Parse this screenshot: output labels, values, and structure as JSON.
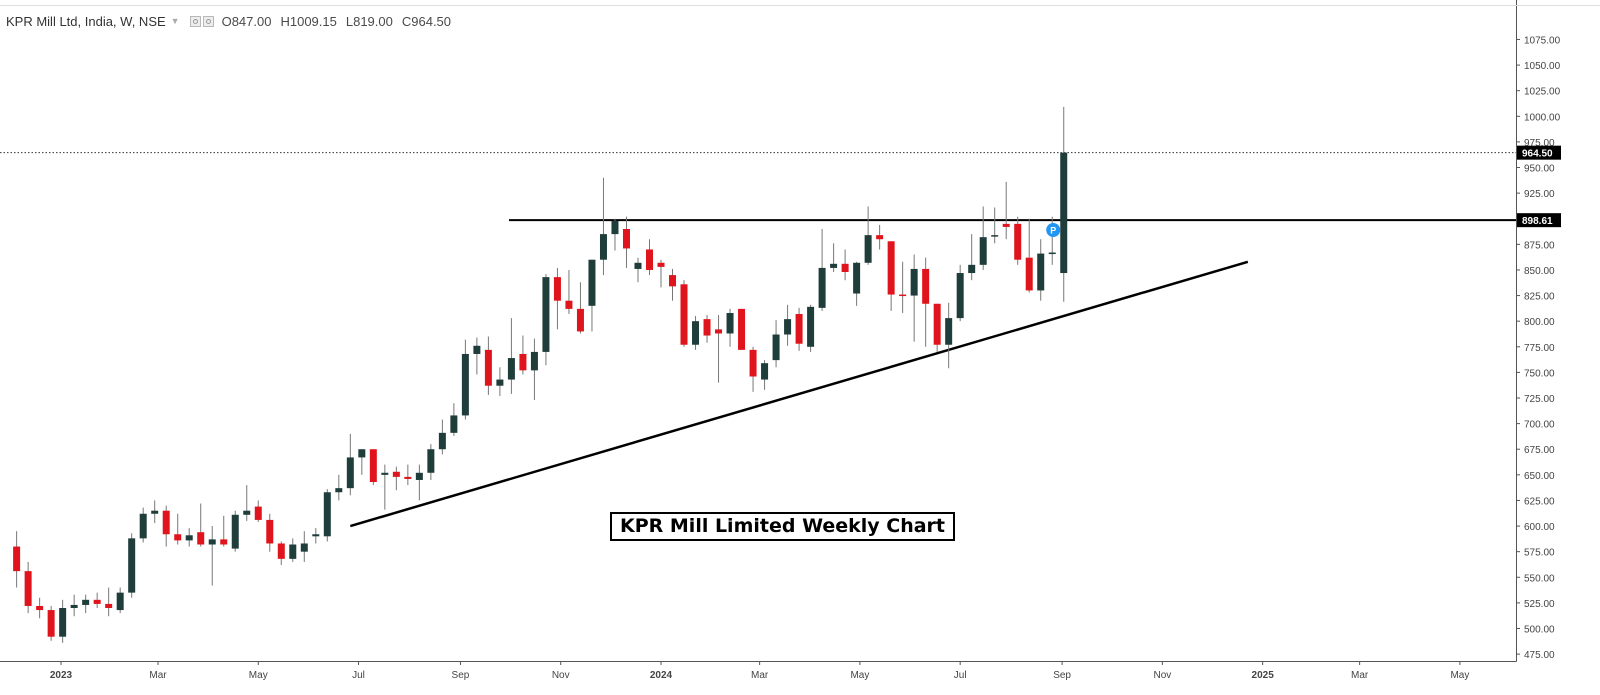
{
  "header": {
    "symbol": "KPR Mill Ltd, India, W, NSE",
    "open_label": "O847.00",
    "high_label": "H1009.15",
    "low_label": "L819.00",
    "close_label": "C964.50",
    "caret_icon": "chevron-down-icon",
    "settings_icons": [
      "eye-icon",
      "settings-icon"
    ]
  },
  "caption": "KPR Mill Limited Weekly Chart",
  "chart_data": {
    "type": "candlestick",
    "title": "KPR Mill Limited Weekly Chart",
    "timeframe": "W",
    "exchange": "NSE",
    "ylim": [
      455,
      1090
    ],
    "y_ticks": [
      475,
      500,
      525,
      550,
      575,
      600,
      625,
      650,
      675,
      700,
      725,
      750,
      775,
      800,
      825,
      850,
      875,
      900,
      925,
      950,
      975,
      1000,
      1025,
      1050,
      1075
    ],
    "y_tick_labels": [
      "475.00",
      "500.00",
      "525.00",
      "550.00",
      "575.00",
      "600.00",
      "625.00",
      "650.00",
      "675.00",
      "700.00",
      "725.00",
      "750.00",
      "775.00",
      "800.00",
      "825.00",
      "850.00",
      "875.00",
      "900.00",
      "925.00",
      "950.00",
      "975.00",
      "1000.00",
      "1025.00",
      "1050.00",
      "1075.00"
    ],
    "x_ticks": [
      {
        "label": "2023",
        "date": "2023-01-01"
      },
      {
        "label": "Mar",
        "date": "2023-03-01"
      },
      {
        "label": "May",
        "date": "2023-05-01"
      },
      {
        "label": "Jul",
        "date": "2023-07-01"
      },
      {
        "label": "Sep",
        "date": "2023-09-01"
      },
      {
        "label": "Nov",
        "date": "2023-11-01"
      },
      {
        "label": "2024",
        "date": "2024-01-01"
      },
      {
        "label": "Mar",
        "date": "2024-03-01"
      },
      {
        "label": "May",
        "date": "2024-05-01"
      },
      {
        "label": "Jul",
        "date": "2024-07-01"
      },
      {
        "label": "Sep",
        "date": "2024-09-01"
      },
      {
        "label": "Nov",
        "date": "2024-11-01"
      },
      {
        "label": "2025",
        "date": "2025-01-01"
      },
      {
        "label": "Mar",
        "date": "2025-03-01"
      },
      {
        "label": "May",
        "date": "2025-05-01"
      }
    ],
    "candles": [
      {
        "date": "2022-12-05",
        "o": 580,
        "h": 595,
        "l": 540,
        "c": 556
      },
      {
        "date": "2022-12-12",
        "o": 556,
        "h": 565,
        "l": 515,
        "c": 522
      },
      {
        "date": "2022-12-19",
        "o": 522,
        "h": 530,
        "l": 510,
        "c": 518
      },
      {
        "date": "2022-12-26",
        "o": 518,
        "h": 522,
        "l": 488,
        "c": 492
      },
      {
        "date": "2023-01-02",
        "o": 492,
        "h": 528,
        "l": 486,
        "c": 520
      },
      {
        "date": "2023-01-09",
        "o": 520,
        "h": 533,
        "l": 512,
        "c": 523
      },
      {
        "date": "2023-01-16",
        "o": 523,
        "h": 533,
        "l": 515,
        "c": 528
      },
      {
        "date": "2023-01-23",
        "o": 528,
        "h": 535,
        "l": 520,
        "c": 524
      },
      {
        "date": "2023-01-30",
        "o": 524,
        "h": 540,
        "l": 512,
        "c": 520
      },
      {
        "date": "2023-02-06",
        "o": 518,
        "h": 540,
        "l": 515,
        "c": 535
      },
      {
        "date": "2023-02-13",
        "o": 535,
        "h": 593,
        "l": 530,
        "c": 588
      },
      {
        "date": "2023-02-20",
        "o": 588,
        "h": 618,
        "l": 584,
        "c": 612
      },
      {
        "date": "2023-02-27",
        "o": 612,
        "h": 625,
        "l": 603,
        "c": 615
      },
      {
        "date": "2023-03-06",
        "o": 615,
        "h": 620,
        "l": 580,
        "c": 592
      },
      {
        "date": "2023-03-13",
        "o": 592,
        "h": 612,
        "l": 582,
        "c": 586
      },
      {
        "date": "2023-03-20",
        "o": 586,
        "h": 598,
        "l": 580,
        "c": 591
      },
      {
        "date": "2023-03-27",
        "o": 594,
        "h": 622,
        "l": 580,
        "c": 582
      },
      {
        "date": "2023-04-03",
        "o": 582,
        "h": 600,
        "l": 542,
        "c": 587
      },
      {
        "date": "2023-04-10",
        "o": 587,
        "h": 610,
        "l": 580,
        "c": 582
      },
      {
        "date": "2023-04-17",
        "o": 578,
        "h": 615,
        "l": 575,
        "c": 611
      },
      {
        "date": "2023-04-24",
        "o": 611,
        "h": 640,
        "l": 605,
        "c": 615
      },
      {
        "date": "2023-05-01",
        "o": 619,
        "h": 625,
        "l": 604,
        "c": 606
      },
      {
        "date": "2023-05-08",
        "o": 606,
        "h": 612,
        "l": 575,
        "c": 583
      },
      {
        "date": "2023-05-15",
        "o": 583,
        "h": 585,
        "l": 562,
        "c": 568
      },
      {
        "date": "2023-05-22",
        "o": 568,
        "h": 588,
        "l": 565,
        "c": 582
      },
      {
        "date": "2023-05-29",
        "o": 575,
        "h": 595,
        "l": 565,
        "c": 583
      },
      {
        "date": "2023-06-05",
        "o": 590,
        "h": 598,
        "l": 583,
        "c": 592
      },
      {
        "date": "2023-06-12",
        "o": 590,
        "h": 636,
        "l": 585,
        "c": 633
      },
      {
        "date": "2023-06-19",
        "o": 633,
        "h": 650,
        "l": 625,
        "c": 637
      },
      {
        "date": "2023-06-26",
        "o": 637,
        "h": 690,
        "l": 630,
        "c": 667
      },
      {
        "date": "2023-07-03",
        "o": 667,
        "h": 675,
        "l": 650,
        "c": 675
      },
      {
        "date": "2023-07-10",
        "o": 675,
        "h": 675,
        "l": 640,
        "c": 643
      },
      {
        "date": "2023-07-17",
        "o": 650,
        "h": 660,
        "l": 616,
        "c": 652
      },
      {
        "date": "2023-07-24",
        "o": 653,
        "h": 658,
        "l": 635,
        "c": 648
      },
      {
        "date": "2023-07-31",
        "o": 648,
        "h": 660,
        "l": 640,
        "c": 646
      },
      {
        "date": "2023-08-07",
        "o": 645,
        "h": 660,
        "l": 625,
        "c": 652
      },
      {
        "date": "2023-08-14",
        "o": 652,
        "h": 680,
        "l": 645,
        "c": 675
      },
      {
        "date": "2023-08-21",
        "o": 675,
        "h": 704,
        "l": 670,
        "c": 691
      },
      {
        "date": "2023-08-28",
        "o": 691,
        "h": 720,
        "l": 688,
        "c": 708
      },
      {
        "date": "2023-09-04",
        "o": 708,
        "h": 782,
        "l": 704,
        "c": 768
      },
      {
        "date": "2023-09-11",
        "o": 768,
        "h": 784,
        "l": 748,
        "c": 776
      },
      {
        "date": "2023-09-18",
        "o": 772,
        "h": 785,
        "l": 728,
        "c": 737
      },
      {
        "date": "2023-09-25",
        "o": 737,
        "h": 755,
        "l": 727,
        "c": 743
      },
      {
        "date": "2023-10-02",
        "o": 743,
        "h": 803,
        "l": 729,
        "c": 764
      },
      {
        "date": "2023-10-09",
        "o": 768,
        "h": 786,
        "l": 748,
        "c": 752
      },
      {
        "date": "2023-10-16",
        "o": 752,
        "h": 783,
        "l": 723,
        "c": 770
      },
      {
        "date": "2023-10-23",
        "o": 770,
        "h": 846,
        "l": 757,
        "c": 843
      },
      {
        "date": "2023-10-30",
        "o": 843,
        "h": 852,
        "l": 792,
        "c": 820
      },
      {
        "date": "2023-11-06",
        "o": 820,
        "h": 850,
        "l": 807,
        "c": 812
      },
      {
        "date": "2023-11-13",
        "o": 812,
        "h": 838,
        "l": 788,
        "c": 790
      },
      {
        "date": "2023-11-20",
        "o": 815,
        "h": 860,
        "l": 790,
        "c": 860
      },
      {
        "date": "2023-11-27",
        "o": 860,
        "h": 940,
        "l": 845,
        "c": 885
      },
      {
        "date": "2023-12-04",
        "o": 885,
        "h": 900,
        "l": 869,
        "c": 898
      },
      {
        "date": "2023-12-11",
        "o": 890,
        "h": 902,
        "l": 852,
        "c": 871
      },
      {
        "date": "2023-12-18",
        "o": 851,
        "h": 862,
        "l": 838,
        "c": 857
      },
      {
        "date": "2023-12-25",
        "o": 870,
        "h": 880,
        "l": 845,
        "c": 850
      },
      {
        "date": "2024-01-01",
        "o": 857,
        "h": 860,
        "l": 833,
        "c": 853
      },
      {
        "date": "2024-01-08",
        "o": 845,
        "h": 851,
        "l": 820,
        "c": 834
      },
      {
        "date": "2024-01-15",
        "o": 836,
        "h": 840,
        "l": 775,
        "c": 777
      },
      {
        "date": "2024-01-22",
        "o": 777,
        "h": 805,
        "l": 772,
        "c": 800
      },
      {
        "date": "2024-01-29",
        "o": 802,
        "h": 806,
        "l": 779,
        "c": 786
      },
      {
        "date": "2024-02-05",
        "o": 792,
        "h": 806,
        "l": 740,
        "c": 788
      },
      {
        "date": "2024-02-12",
        "o": 788,
        "h": 812,
        "l": 775,
        "c": 808
      },
      {
        "date": "2024-02-19",
        "o": 812,
        "h": 812,
        "l": 775,
        "c": 772
      },
      {
        "date": "2024-02-26",
        "o": 772,
        "h": 775,
        "l": 731,
        "c": 746
      },
      {
        "date": "2024-03-04",
        "o": 743,
        "h": 762,
        "l": 733,
        "c": 759
      },
      {
        "date": "2024-03-11",
        "o": 762,
        "h": 801,
        "l": 755,
        "c": 787
      },
      {
        "date": "2024-03-18",
        "o": 787,
        "h": 816,
        "l": 776,
        "c": 802
      },
      {
        "date": "2024-03-25",
        "o": 807,
        "h": 813,
        "l": 771,
        "c": 778
      },
      {
        "date": "2024-04-01",
        "o": 775,
        "h": 816,
        "l": 770,
        "c": 814
      },
      {
        "date": "2024-04-08",
        "o": 813,
        "h": 890,
        "l": 810,
        "c": 852
      },
      {
        "date": "2024-04-15",
        "o": 852,
        "h": 876,
        "l": 848,
        "c": 856
      },
      {
        "date": "2024-04-22",
        "o": 856,
        "h": 870,
        "l": 840,
        "c": 848
      },
      {
        "date": "2024-04-29",
        "o": 827,
        "h": 858,
        "l": 815,
        "c": 857
      },
      {
        "date": "2024-05-06",
        "o": 857,
        "h": 912,
        "l": 855,
        "c": 884
      },
      {
        "date": "2024-05-13",
        "o": 884,
        "h": 894,
        "l": 870,
        "c": 880
      },
      {
        "date": "2024-05-20",
        "o": 878,
        "h": 878,
        "l": 810,
        "c": 826
      },
      {
        "date": "2024-05-27",
        "o": 826,
        "h": 858,
        "l": 808,
        "c": 825
      },
      {
        "date": "2024-06-03",
        "o": 825,
        "h": 865,
        "l": 780,
        "c": 851
      },
      {
        "date": "2024-06-10",
        "o": 851,
        "h": 862,
        "l": 775,
        "c": 817
      },
      {
        "date": "2024-06-17",
        "o": 817,
        "h": 817,
        "l": 770,
        "c": 777
      },
      {
        "date": "2024-06-24",
        "o": 777,
        "h": 818,
        "l": 754,
        "c": 803
      },
      {
        "date": "2024-07-01",
        "o": 803,
        "h": 855,
        "l": 800,
        "c": 847
      },
      {
        "date": "2024-07-08",
        "o": 847,
        "h": 885,
        "l": 840,
        "c": 855
      },
      {
        "date": "2024-07-15",
        "o": 855,
        "h": 912,
        "l": 850,
        "c": 882
      },
      {
        "date": "2024-07-22",
        "o": 883,
        "h": 911,
        "l": 876,
        "c": 884
      },
      {
        "date": "2024-07-29",
        "o": 895,
        "h": 936,
        "l": 880,
        "c": 892
      },
      {
        "date": "2024-08-05",
        "o": 895,
        "h": 902,
        "l": 855,
        "c": 860
      },
      {
        "date": "2024-08-12",
        "o": 862,
        "h": 900,
        "l": 828,
        "c": 830
      },
      {
        "date": "2024-08-19",
        "o": 830,
        "h": 880,
        "l": 820,
        "c": 866
      },
      {
        "date": "2024-08-26",
        "o": 866,
        "h": 902,
        "l": 855,
        "c": 867
      },
      {
        "date": "2024-09-02",
        "o": 847,
        "h": 1009.15,
        "l": 819,
        "c": 964.5
      }
    ],
    "horizontal_line": {
      "value": 898.61,
      "label": "898.61"
    },
    "last_price": {
      "value": 964.5,
      "label": "964.50"
    },
    "trendline": {
      "start": {
        "date": "2023-06-26",
        "value": 600
      },
      "end": {
        "date": "2024-12-23",
        "value": 858
      }
    },
    "marker": {
      "date": "2024-08-26",
      "value": 889,
      "label": "P",
      "color": "#2196f3"
    },
    "colors": {
      "up": "#1f3d3a",
      "down": "#e0141c",
      "wick": "#777777",
      "line": "#000000",
      "axis_text": "#444444"
    }
  }
}
